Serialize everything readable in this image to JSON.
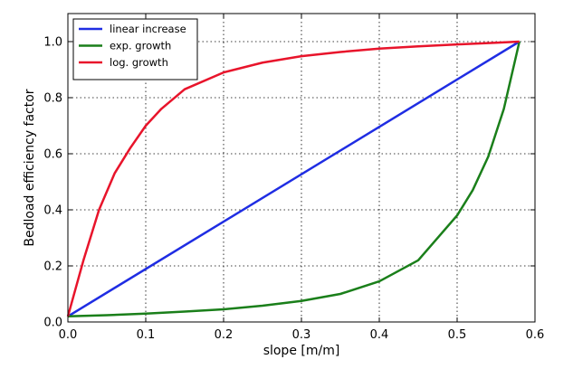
{
  "chart_data": {
    "type": "line",
    "title": "",
    "xlabel": "slope [m/m]",
    "ylabel": "Bedload efficiency factor",
    "xlim": [
      0.0,
      0.6
    ],
    "ylim": [
      0.0,
      1.1
    ],
    "xticks": [
      "0.0",
      "0.1",
      "0.2",
      "0.3",
      "0.4",
      "0.5",
      "0.6"
    ],
    "yticks": [
      "0.0",
      "0.2",
      "0.4",
      "0.6",
      "0.8",
      "1.0"
    ],
    "grid": true,
    "legend_position": "top-left",
    "series": [
      {
        "name": "linear increase",
        "color": "#1f2de3",
        "x": [
          0.0,
          0.58
        ],
        "y": [
          0.02,
          1.0
        ]
      },
      {
        "name": "exp. growth",
        "color": "#1a7f1a",
        "x": [
          0.0,
          0.05,
          0.1,
          0.15,
          0.2,
          0.25,
          0.3,
          0.35,
          0.4,
          0.45,
          0.5,
          0.52,
          0.54,
          0.56,
          0.58
        ],
        "y": [
          0.02,
          0.024,
          0.03,
          0.037,
          0.045,
          0.058,
          0.075,
          0.1,
          0.145,
          0.22,
          0.38,
          0.47,
          0.59,
          0.76,
          1.0
        ]
      },
      {
        "name": "log. growth",
        "color": "#e8142b",
        "x": [
          0.0,
          0.02,
          0.04,
          0.06,
          0.08,
          0.1,
          0.12,
          0.15,
          0.2,
          0.25,
          0.3,
          0.35,
          0.4,
          0.45,
          0.5,
          0.55,
          0.58
        ],
        "y": [
          0.02,
          0.22,
          0.4,
          0.53,
          0.62,
          0.7,
          0.76,
          0.83,
          0.89,
          0.925,
          0.948,
          0.963,
          0.975,
          0.983,
          0.99,
          0.996,
          1.0
        ]
      }
    ]
  }
}
